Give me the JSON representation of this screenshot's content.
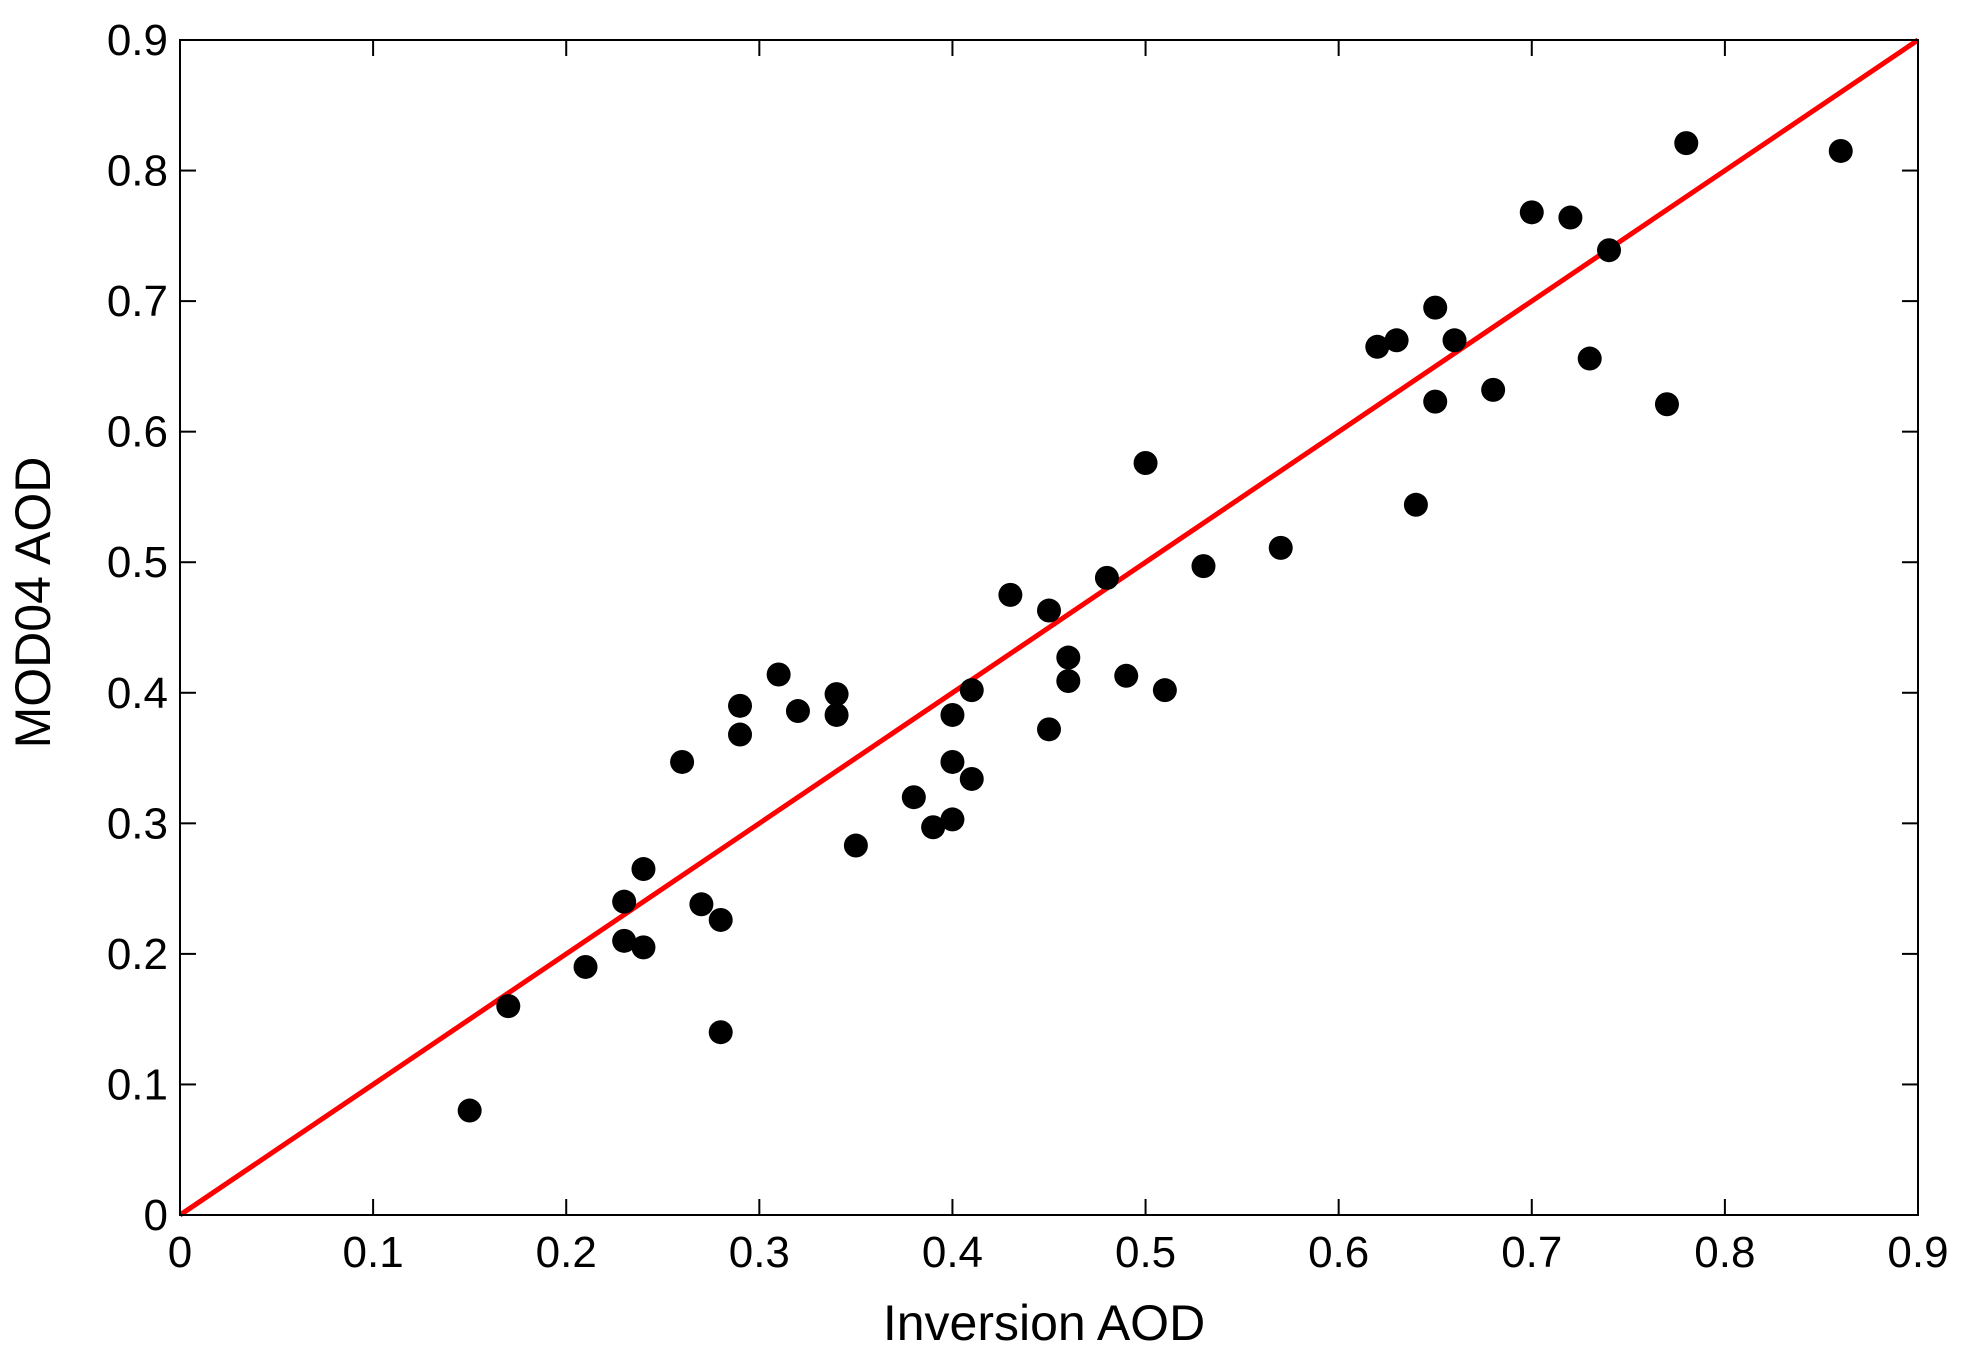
{
  "chart_data": {
    "type": "scatter",
    "title": "",
    "xlabel": "Inversion  AOD",
    "ylabel": "MOD04  AOD",
    "xlim": [
      0,
      0.9
    ],
    "ylim": [
      0,
      0.9
    ],
    "xticks": [
      "0",
      "0.1",
      "0.2",
      "0.3",
      "0.4",
      "0.5",
      "0.6",
      "0.7",
      "0.8",
      "0.9"
    ],
    "yticks": [
      "0",
      "0.1",
      "0.2",
      "0.3",
      "0.4",
      "0.5",
      "0.6",
      "0.7",
      "0.8",
      "0.9"
    ],
    "grid": false,
    "legend": "none",
    "marker_color": "#000000",
    "series": [
      {
        "points": [
          [
            0.15,
            0.08
          ],
          [
            0.17,
            0.16
          ],
          [
            0.21,
            0.19
          ],
          [
            0.23,
            0.21
          ],
          [
            0.23,
            0.24
          ],
          [
            0.24,
            0.205
          ],
          [
            0.24,
            0.265
          ],
          [
            0.26,
            0.347
          ],
          [
            0.27,
            0.238
          ],
          [
            0.28,
            0.226
          ],
          [
            0.28,
            0.14
          ],
          [
            0.29,
            0.39
          ],
          [
            0.29,
            0.368
          ],
          [
            0.31,
            0.414
          ],
          [
            0.32,
            0.386
          ],
          [
            0.34,
            0.399
          ],
          [
            0.34,
            0.383
          ],
          [
            0.35,
            0.283
          ],
          [
            0.38,
            0.32
          ],
          [
            0.39,
            0.297
          ],
          [
            0.4,
            0.303
          ],
          [
            0.4,
            0.347
          ],
          [
            0.4,
            0.383
          ],
          [
            0.41,
            0.334
          ],
          [
            0.41,
            0.402
          ],
          [
            0.43,
            0.475
          ],
          [
            0.45,
            0.463
          ],
          [
            0.45,
            0.372
          ],
          [
            0.46,
            0.427
          ],
          [
            0.46,
            0.409
          ],
          [
            0.48,
            0.488
          ],
          [
            0.49,
            0.413
          ],
          [
            0.5,
            0.576
          ],
          [
            0.51,
            0.402
          ],
          [
            0.53,
            0.497
          ],
          [
            0.57,
            0.511
          ],
          [
            0.62,
            0.665
          ],
          [
            0.63,
            0.67
          ],
          [
            0.64,
            0.544
          ],
          [
            0.65,
            0.695
          ],
          [
            0.65,
            0.623
          ],
          [
            0.66,
            0.67
          ],
          [
            0.68,
            0.632
          ],
          [
            0.7,
            0.768
          ],
          [
            0.72,
            0.764
          ],
          [
            0.73,
            0.656
          ],
          [
            0.74,
            0.739
          ],
          [
            0.77,
            0.621
          ],
          [
            0.78,
            0.821
          ],
          [
            0.86,
            0.815
          ]
        ]
      }
    ],
    "fit_line": {
      "from": [
        0,
        0
      ],
      "to": [
        0.9,
        0.9
      ],
      "color": "#ff0000"
    }
  }
}
